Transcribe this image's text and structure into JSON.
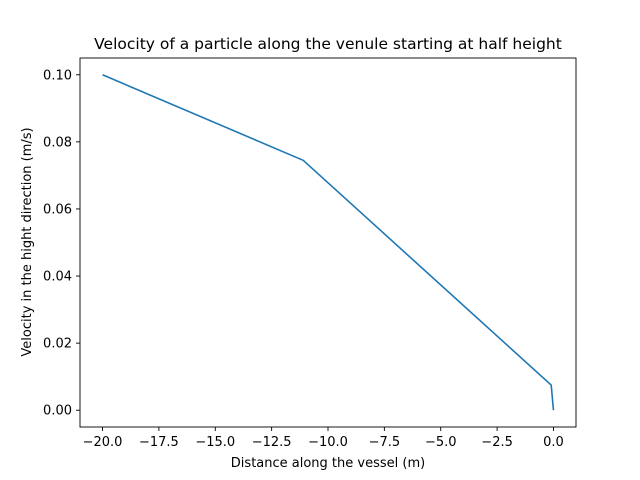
{
  "chart_data": {
    "type": "line",
    "title": "Velocity of a particle along the venule starting at half height",
    "xlabel": "Distance along the vessel (m)",
    "ylabel": "Velocity in the hight direction (m/s)",
    "xlim": [
      -21,
      1
    ],
    "ylim": [
      -0.005,
      0.105
    ],
    "xticks": [
      -20.0,
      -17.5,
      -15.0,
      -12.5,
      -10.0,
      -7.5,
      -5.0,
      -2.5,
      0.0
    ],
    "xtick_labels": [
      "−20.0",
      "−17.5",
      "−15.0",
      "−12.5",
      "−10.0",
      "−7.5",
      "−5.0",
      "−2.5",
      "0.0"
    ],
    "yticks": [
      0.0,
      0.02,
      0.04,
      0.06,
      0.08,
      0.1
    ],
    "ytick_labels": [
      "0.00",
      "0.02",
      "0.04",
      "0.06",
      "0.08",
      "0.10"
    ],
    "grid": false,
    "series": [
      {
        "color": "#1f77b4",
        "x": [
          -20.0,
          -11.1,
          -0.1,
          0.0
        ],
        "y": [
          0.1,
          0.0745,
          0.0075,
          0.0
        ]
      }
    ]
  }
}
